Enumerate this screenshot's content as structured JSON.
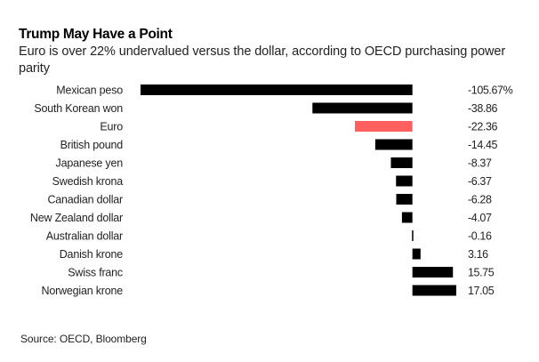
{
  "chart_data": {
    "type": "bar",
    "orientation": "horizontal",
    "title": "Trump May Have a Point",
    "subtitle": "Euro is over 22% undervalued versus the dollar, according to OECD purchasing power parity",
    "source": "Source: OECD, Bloomberg",
    "xlabel": "",
    "ylabel": "",
    "xlim": [
      -105.67,
      17.05
    ],
    "grid": false,
    "legend": "none",
    "value_suffix_first": "%",
    "categories": [
      "Mexican peso",
      "South Korean won",
      "Euro",
      "British pound",
      "Japanese yen",
      "Swedish krona",
      "Canadian dollar",
      "New Zealand dollar",
      "Australian dollar",
      "Danish krone",
      "Swiss franc",
      "Norwegian krone"
    ],
    "values": [
      -105.67,
      -38.86,
      -22.36,
      -14.45,
      -8.37,
      -6.37,
      -6.28,
      -4.07,
      -0.16,
      3.16,
      15.75,
      17.05
    ],
    "value_labels": [
      "-105.67%",
      "-38.86",
      "-22.36",
      "-14.45",
      "-8.37",
      "-6.37",
      "-6.28",
      "-4.07",
      "-0.16",
      "3.16",
      "15.75",
      "17.05"
    ],
    "highlight_category": "Euro",
    "colors": {
      "default_bar": "#000000",
      "highlight_bar": "#ff5f5f"
    }
  }
}
